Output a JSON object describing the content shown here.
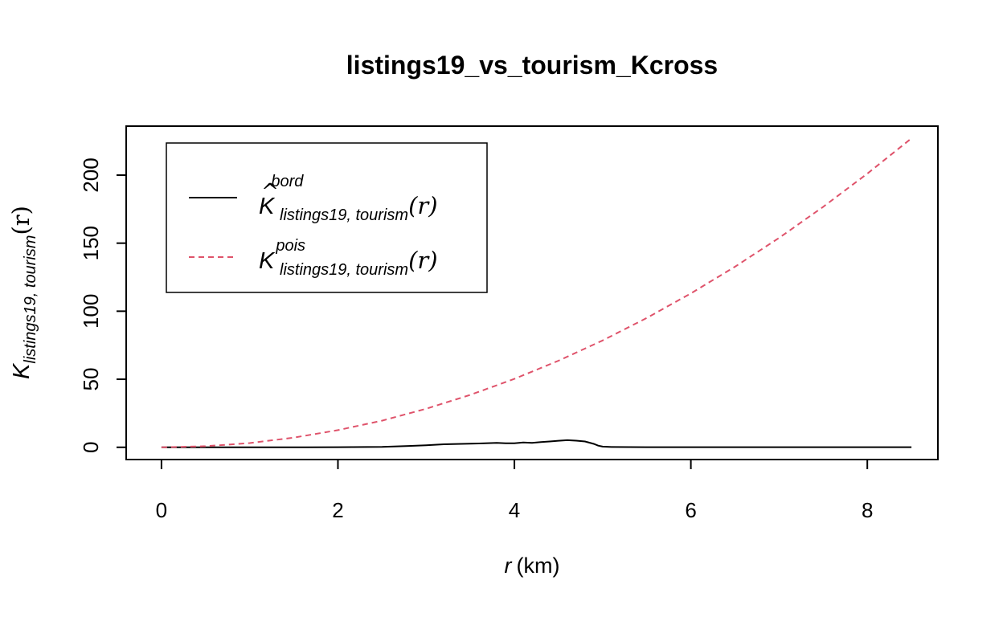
{
  "chart_data": {
    "type": "line",
    "title": "listings19_vs_tourism_Kcross",
    "xlabel": {
      "var": "r",
      "unit": "(km)"
    },
    "ylabel": {
      "base": "K",
      "sub": "listings19, tourism",
      "arg": "(r)"
    },
    "xlim": [
      -0.4,
      8.8
    ],
    "ylim": [
      -9,
      236
    ],
    "xticks": [
      0,
      2,
      4,
      6,
      8
    ],
    "yticks": [
      0,
      50,
      100,
      150,
      200
    ],
    "legend": {
      "position": "top-left",
      "entries": [
        {
          "base": "K",
          "hat": "^",
          "sup": "bord",
          "sub": "listings19, tourism",
          "arg": "(r)",
          "color": "#000000",
          "dash": "solid"
        },
        {
          "base": "K",
          "hat": "",
          "sup": "pois",
          "sub": "listings19, tourism",
          "arg": "(r)",
          "color": "#DF536B",
          "dash": "dashed"
        }
      ]
    },
    "series": [
      {
        "key": "bord",
        "color": "#000000",
        "dash": "solid",
        "x": [
          0,
          0.5,
          1.0,
          1.5,
          2.0,
          2.5,
          2.8,
          3.0,
          3.2,
          3.4,
          3.6,
          3.8,
          3.9,
          4.0,
          4.1,
          4.2,
          4.3,
          4.4,
          4.5,
          4.6,
          4.7,
          4.8,
          4.9,
          4.95,
          5.0,
          5.1,
          5.5,
          6.0,
          7.0,
          8.0,
          8.5
        ],
        "y": [
          0,
          0,
          0,
          0,
          0.1,
          0.3,
          1.0,
          1.5,
          2.2,
          2.5,
          2.8,
          3.2,
          3.0,
          3.0,
          3.6,
          3.3,
          3.8,
          4.3,
          4.8,
          5.2,
          4.9,
          4.3,
          2.5,
          1.2,
          0.5,
          0.2,
          0.1,
          0.1,
          0.1,
          0.1,
          0.1
        ]
      },
      {
        "key": "pois",
        "color": "#DF536B",
        "dash": "dashed",
        "x": [
          0,
          0.5,
          1.0,
          1.5,
          2.0,
          2.5,
          3.0,
          3.5,
          4.0,
          4.5,
          5.0,
          5.5,
          6.0,
          6.5,
          7.0,
          7.5,
          8.0,
          8.5
        ],
        "y": [
          0,
          0.8,
          3.1,
          7.1,
          12.6,
          19.6,
          28.3,
          38.5,
          50.3,
          63.6,
          78.5,
          95.0,
          113.1,
          132.7,
          153.9,
          176.7,
          201.1,
          227.0
        ]
      }
    ]
  }
}
